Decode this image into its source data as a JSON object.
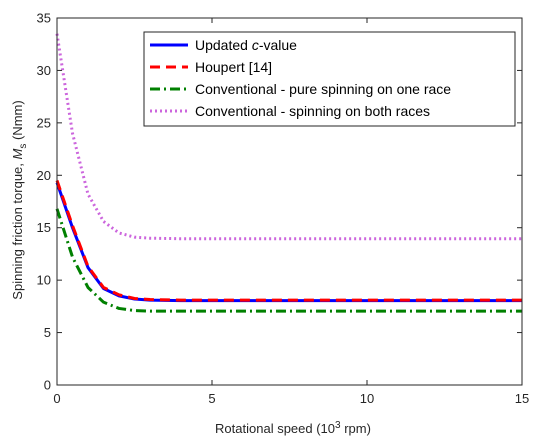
{
  "chart_data": {
    "type": "line",
    "xlabel_parts": [
      "Rotational speed (10",
      "3",
      " rpm)"
    ],
    "ylabel_parts": [
      "Spinning friction torque,  ",
      "M",
      "s",
      " (Nmm)"
    ],
    "xlim": [
      0,
      15
    ],
    "ylim": [
      0,
      35
    ],
    "xticks": [
      0,
      5,
      10,
      15
    ],
    "yticks": [
      0,
      5,
      10,
      15,
      20,
      25,
      30,
      35
    ],
    "grid": false,
    "legend_position": "top-right",
    "series": [
      {
        "name_parts": [
          "Updated ",
          "c",
          "-value"
        ],
        "color": "#0000ff",
        "style": "solid",
        "x": [
          0,
          0.5,
          1,
          1.5,
          2,
          2.5,
          3,
          4,
          5,
          7.5,
          10,
          12.5,
          15
        ],
        "y": [
          19.3,
          15.0,
          11.2,
          9.2,
          8.5,
          8.2,
          8.1,
          8.05,
          8.05,
          8.05,
          8.05,
          8.05,
          8.05
        ]
      },
      {
        "name_parts": [
          "Houpert [14]"
        ],
        "color": "#ff0000",
        "style": "dashed",
        "x": [
          0,
          0.5,
          1,
          1.5,
          2,
          2.5,
          3,
          4,
          5,
          7.5,
          10,
          12.5,
          15
        ],
        "y": [
          19.5,
          15.2,
          11.3,
          9.3,
          8.6,
          8.25,
          8.15,
          8.1,
          8.1,
          8.1,
          8.1,
          8.1,
          8.1
        ]
      },
      {
        "name_parts": [
          "Conventional - pure spinning on one race"
        ],
        "color": "#008000",
        "style": "dashdot",
        "x": [
          0,
          0.5,
          1,
          1.5,
          2,
          2.5,
          3,
          4,
          5,
          7.5,
          10,
          12.5,
          15
        ],
        "y": [
          16.8,
          12.2,
          9.3,
          7.9,
          7.3,
          7.1,
          7.05,
          7.05,
          7.05,
          7.05,
          7.05,
          7.05,
          7.05
        ]
      },
      {
        "name_parts": [
          "Conventional - spinning on both races"
        ],
        "color": "#cc66dd",
        "style": "dotted",
        "x": [
          0,
          0.5,
          1,
          1.5,
          2,
          2.5,
          3,
          4,
          5,
          7.5,
          10,
          12.5,
          15
        ],
        "y": [
          33.5,
          24.0,
          18.2,
          15.6,
          14.5,
          14.1,
          14.0,
          13.95,
          13.95,
          13.95,
          13.95,
          13.95,
          13.95
        ]
      }
    ]
  }
}
